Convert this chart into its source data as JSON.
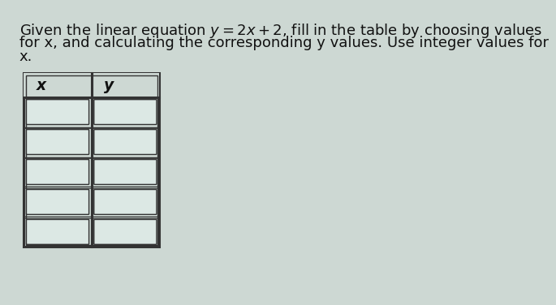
{
  "background_color": "#cdd8d3",
  "text_line1": "Given the linear equation $y = 2x + 2$, fill in the table by choosing values",
  "text_line2": "for x, and calculating the corresponding y values. Use integer values for",
  "text_line3": "x.",
  "col_headers": [
    "x",
    "y"
  ],
  "num_data_rows": 5,
  "cell_color": "#dce8e4",
  "border_color": "#333333",
  "header_text_color": "#111111",
  "text_color": "#111111",
  "text_fontsize": 13.0,
  "header_fontsize": 13.5,
  "outer_border_lw": 2.2,
  "inner_border_lw": 1.0,
  "cell_inner_lw": 1.0
}
